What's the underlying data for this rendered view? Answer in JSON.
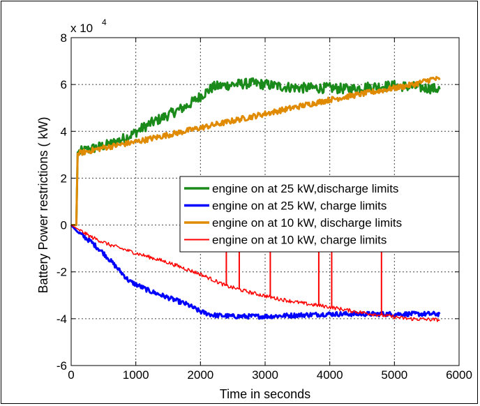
{
  "chart_data": {
    "type": "line",
    "title": "",
    "xlabel": "Time in seconds",
    "ylabel": "Battery Power restrictions ( kW)",
    "y_multiplier_label": "x 10",
    "y_multiplier_exponent": "4",
    "xlim": [
      0,
      6000
    ],
    "ylim": [
      -60000,
      80000
    ],
    "x_ticks": [
      0,
      1000,
      2000,
      3000,
      4000,
      5000,
      6000
    ],
    "x_tick_labels": [
      "0",
      "1000",
      "2000",
      "3000",
      "4000",
      "5000",
      "6000"
    ],
    "y_ticks": [
      -60000,
      -40000,
      -20000,
      0,
      20000,
      40000,
      60000,
      80000
    ],
    "y_tick_labels": [
      "-6",
      "-4",
      "-2",
      "0",
      "2",
      "4",
      "6",
      "8"
    ],
    "grid": true,
    "legend_position": "center-right",
    "series": [
      {
        "name": "engine on at 25 kW,discharge limits",
        "color": "#1a8a1a",
        "stroke_width": 3,
        "noise": 2200,
        "x": [
          0,
          80,
          100,
          300,
          600,
          900,
          1200,
          1500,
          1800,
          2000,
          2200,
          2500,
          2800,
          3000,
          3300,
          3600,
          4000,
          4300,
          4600,
          5000,
          5300,
          5700
        ],
        "y": [
          0,
          0,
          31000,
          32500,
          34500,
          38000,
          43000,
          47000,
          51000,
          55000,
          59000,
          60000,
          60500,
          60000,
          59000,
          58500,
          58500,
          58000,
          59000,
          59500,
          59000,
          58000
        ]
      },
      {
        "name": "engine on at 25 kW, charge limits",
        "color": "#0000ff",
        "stroke_width": 3,
        "noise": 1000,
        "x": [
          0,
          100,
          300,
          500,
          700,
          900,
          1200,
          1500,
          1800,
          2000,
          2200,
          2500,
          3000,
          3500,
          4000,
          4500,
          5000,
          5500,
          5700
        ],
        "y": [
          0,
          -3000,
          -7000,
          -12000,
          -18000,
          -24000,
          -28000,
          -31000,
          -34000,
          -37000,
          -38500,
          -39000,
          -39000,
          -38500,
          -38000,
          -38000,
          -38000,
          -38000,
          -38000
        ]
      },
      {
        "name": "engine on at 10 kW, discharge limits",
        "color": "#e08a00",
        "stroke_width": 3,
        "noise": 1200,
        "x": [
          0,
          80,
          100,
          500,
          1000,
          1500,
          2000,
          2500,
          3000,
          3500,
          4000,
          4500,
          5000,
          5300,
          5600,
          5700
        ],
        "y": [
          0,
          0,
          30500,
          33000,
          35500,
          38500,
          41500,
          44500,
          47500,
          50500,
          53500,
          56000,
          58500,
          60000,
          62500,
          62000
        ]
      },
      {
        "name": "engine on at 10 kW, charge limits",
        "color": "#ff0000",
        "stroke_width": 1.5,
        "noise": 800,
        "x": [
          0,
          300,
          600,
          1000,
          1500,
          2000,
          2400,
          2800,
          3200,
          3600,
          4000,
          4400,
          4800,
          5200,
          5700
        ],
        "y": [
          0,
          -5000,
          -8500,
          -12000,
          -16000,
          -21000,
          -26000,
          -29000,
          -31500,
          -33500,
          -35000,
          -37000,
          -38500,
          -40000,
          -40500
        ],
        "spikes_x": [
          2400,
          2600,
          3080,
          3830,
          4030,
          4800
        ],
        "spikes_top": [
          -10000,
          -10000,
          -10000,
          -10000,
          -10000,
          -10000
        ]
      }
    ]
  }
}
